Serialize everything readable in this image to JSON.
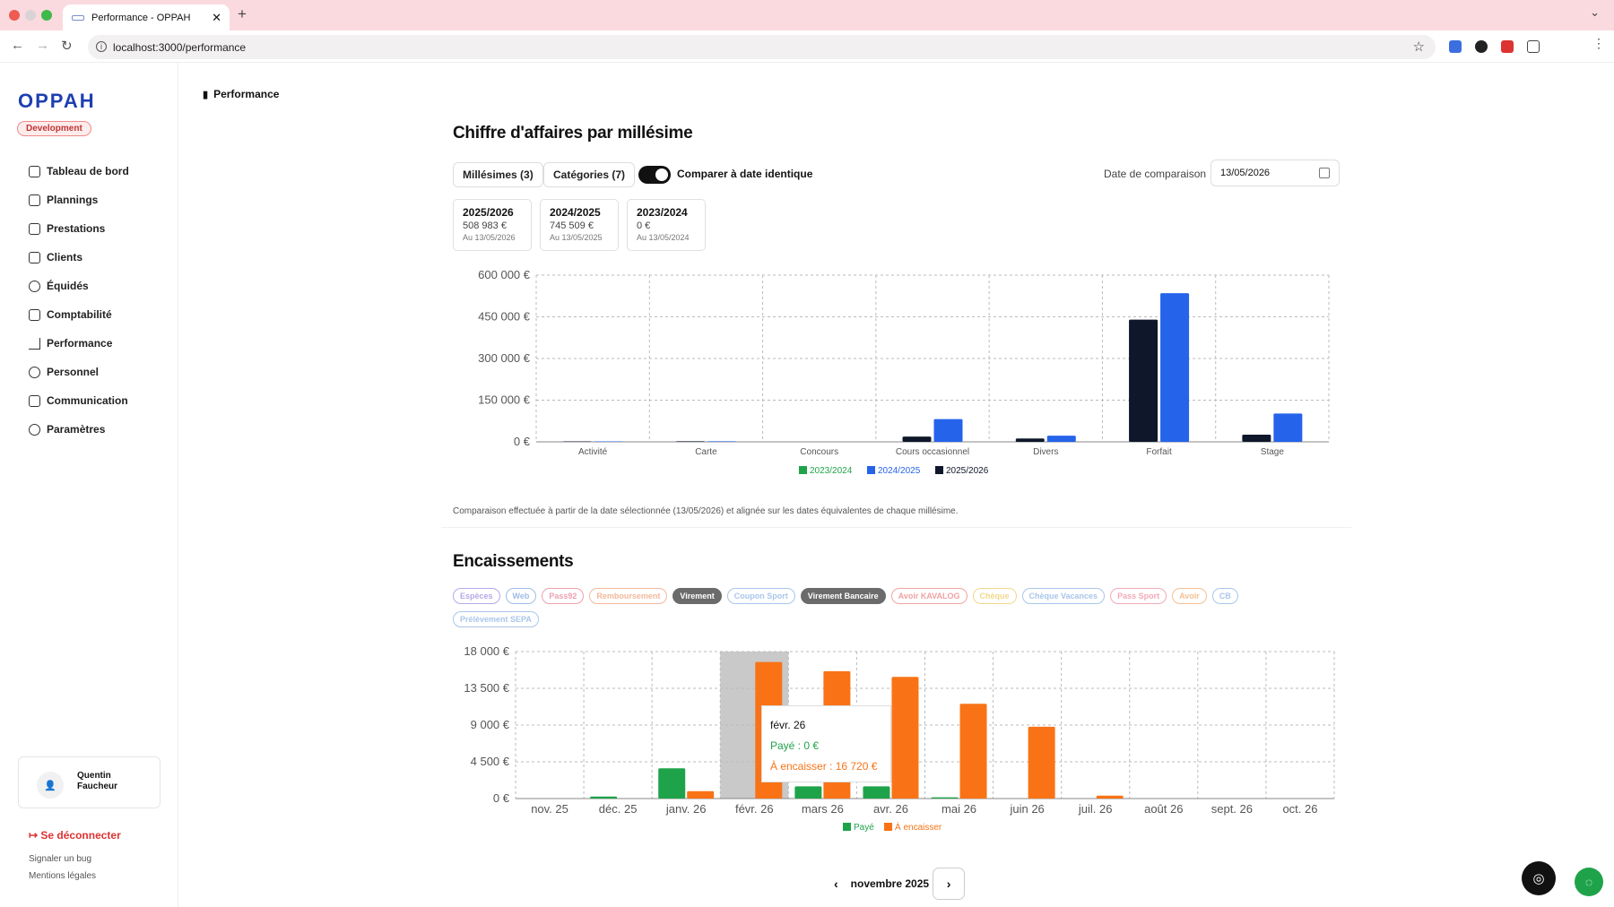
{
  "browser": {
    "tab_title": "Performance - OPPAH",
    "url": "localhost:3000/performance"
  },
  "sidebar": {
    "logo": "OPPAH",
    "env_badge": "Development",
    "items": [
      {
        "label": "Tableau de bord",
        "icon": "home-icon"
      },
      {
        "label": "Plannings",
        "icon": "calendar-icon"
      },
      {
        "label": "Prestations",
        "icon": "boxes-icon"
      },
      {
        "label": "Clients",
        "icon": "contact-icon"
      },
      {
        "label": "Équidés",
        "icon": "horse-icon"
      },
      {
        "label": "Comptabilité",
        "icon": "bank-icon"
      },
      {
        "label": "Performance",
        "icon": "bar-chart-icon"
      },
      {
        "label": "Personnel",
        "icon": "users-icon"
      },
      {
        "label": "Communication",
        "icon": "mail-icon"
      },
      {
        "label": "Paramètres",
        "icon": "gear-icon"
      }
    ],
    "user_name": "Quentin Faucheur",
    "logout": "Se déconnecter",
    "report_bug": "Signaler un bug",
    "legal": "Mentions légales"
  },
  "breadcrumb": "Performance",
  "revenue": {
    "title": "Chiffre d'affaires par millésime",
    "filter_millesimes": "Millésimes (3)",
    "filter_categories": "Catégories (7)",
    "compare_toggle_label": "Comparer à date identique",
    "compare_toggle_on": true,
    "date_label": "Date de comparaison",
    "date_value": "13/05/2026",
    "year_cards": [
      {
        "year": "2025/2026",
        "value": "508 983 €",
        "date": "Au 13/05/2026"
      },
      {
        "year": "2024/2025",
        "value": "745 509 €",
        "date": "Au 13/05/2025"
      },
      {
        "year": "2023/2024",
        "value": "0 €",
        "date": "Au 13/05/2024"
      }
    ],
    "note": "Comparaison effectuée à partir de la date sélectionnée (13/05/2026) et alignée sur les dates équivalentes de chaque millésime."
  },
  "encaissements": {
    "title": "Encaissements",
    "chips": [
      {
        "label": "Espèces",
        "active": false,
        "color": "#b7a8e8"
      },
      {
        "label": "Web",
        "active": false,
        "color": "#9fbce8"
      },
      {
        "label": "Pass92",
        "active": false,
        "color": "#eea0b0"
      },
      {
        "label": "Remboursement",
        "active": false,
        "color": "#f3b89a"
      },
      {
        "label": "Virement",
        "active": true,
        "color": "#6b6b6b"
      },
      {
        "label": "Coupon Sport",
        "active": false,
        "color": "#a9c6ea"
      },
      {
        "label": "Virement Bancaire",
        "active": true,
        "color": "#6b6b6b"
      },
      {
        "label": "Avoir KAVALOG",
        "active": false,
        "color": "#f0a3a3"
      },
      {
        "label": "Chèque",
        "active": false,
        "color": "#f1d88a"
      },
      {
        "label": "Chèque Vacances",
        "active": false,
        "color": "#a9c6ea"
      },
      {
        "label": "Pass Sport",
        "active": false,
        "color": "#f3a9b8"
      },
      {
        "label": "Avoir",
        "active": false,
        "color": "#f3bf93"
      },
      {
        "label": "CB",
        "active": false,
        "color": "#a9c6ea"
      },
      {
        "label": "Prélèvement SEPA",
        "active": false,
        "color": "#a9c6ea"
      }
    ],
    "tooltip": {
      "title": "févr. 26",
      "paid": "Payé : 0 €",
      "due": "À encaisser : 16 720 €"
    },
    "pager_label": "novembre 2025"
  },
  "chart_data": [
    {
      "type": "bar",
      "categories": [
        "Activité",
        "Carte",
        "Concours",
        "Cours occasionnel",
        "Divers",
        "Forfait",
        "Stage"
      ],
      "series": [
        {
          "name": "2023/2024",
          "color": "#1fa34a",
          "values": [
            0,
            0,
            0,
            0,
            0,
            0,
            0
          ]
        },
        {
          "name": "2024/2025",
          "color": "#2563eb",
          "values": [
            1500,
            2000,
            0,
            82000,
            22000,
            535000,
            102000
          ]
        },
        {
          "name": "2025/2026",
          "color": "#0f172a",
          "values": [
            1500,
            2000,
            0,
            19000,
            12000,
            440000,
            26000
          ]
        }
      ],
      "ylim": [
        0,
        600000
      ],
      "yticks": [
        "0 €",
        "150 000 €",
        "300 000 €",
        "450 000 €",
        "600 000 €"
      ],
      "legend_position": "bottom-center",
      "grid": true
    },
    {
      "type": "bar",
      "categories": [
        "nov. 25",
        "déc. 25",
        "janv. 26",
        "févr. 26",
        "mars 26",
        "avr. 26",
        "mai 26",
        "juin 26",
        "juil. 26",
        "août 26",
        "sept. 26",
        "oct. 26"
      ],
      "series": [
        {
          "name": "Payé",
          "color": "#1fa34a",
          "values": [
            0,
            250,
            3700,
            0,
            1500,
            1500,
            150,
            0,
            0,
            0,
            0,
            0
          ]
        },
        {
          "name": "À encaisser",
          "color": "#f97316",
          "values": [
            0,
            0,
            900,
            16720,
            15600,
            14900,
            11600,
            8800,
            350,
            0,
            0,
            0
          ]
        }
      ],
      "ylim": [
        0,
        18000
      ],
      "yticks": [
        "0 €",
        "4 500 €",
        "9 000 €",
        "13 500 €",
        "18 000 €"
      ],
      "highlighted_category": "févr. 26",
      "legend_position": "bottom-center",
      "grid": true
    }
  ]
}
